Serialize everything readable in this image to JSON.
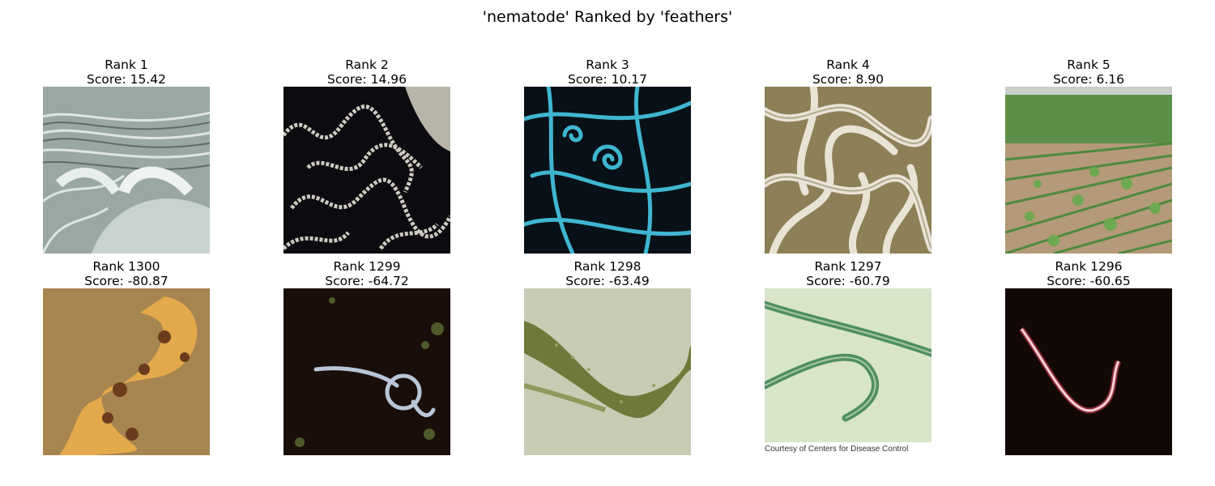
{
  "figure": {
    "title": "'nematode' Ranked by 'feathers'"
  },
  "panels": [
    {
      "rank": "Rank 1",
      "score": "Score: 15.42",
      "image_icon": "nematode-sem-micrograph-icon"
    },
    {
      "rank": "Rank 2",
      "score": "Score: 14.96",
      "image_icon": "nematodes-on-dark-background-icon"
    },
    {
      "rank": "Rank 3",
      "score": "Score: 10.17",
      "image_icon": "blue-nematodes-icon"
    },
    {
      "rank": "Rank 4",
      "score": "Score: 8.90",
      "image_icon": "tangled-white-worms-icon"
    },
    {
      "rank": "Rank 5",
      "score": "Score: 6.16",
      "image_icon": "corn-field-icon"
    },
    {
      "rank": "Rank 1300",
      "score": "Score: -80.87",
      "image_icon": "orange-worm-icon"
    },
    {
      "rank": "Rank 1299",
      "score": "Score: -64.72",
      "image_icon": "coiled-nematode-icon"
    },
    {
      "rank": "Rank 1298",
      "score": "Score: -63.49",
      "image_icon": "green-nematode-microscopy-icon"
    },
    {
      "rank": "Rank 1297",
      "score": "Score: -60.79",
      "image_icon": "green-nematodes-cdc-icon",
      "watermark": "Courtesy of Centers for Disease Control"
    },
    {
      "rank": "Rank 1296",
      "score": "Score: -60.65",
      "image_icon": "pink-worm-dark-background-icon"
    }
  ]
}
